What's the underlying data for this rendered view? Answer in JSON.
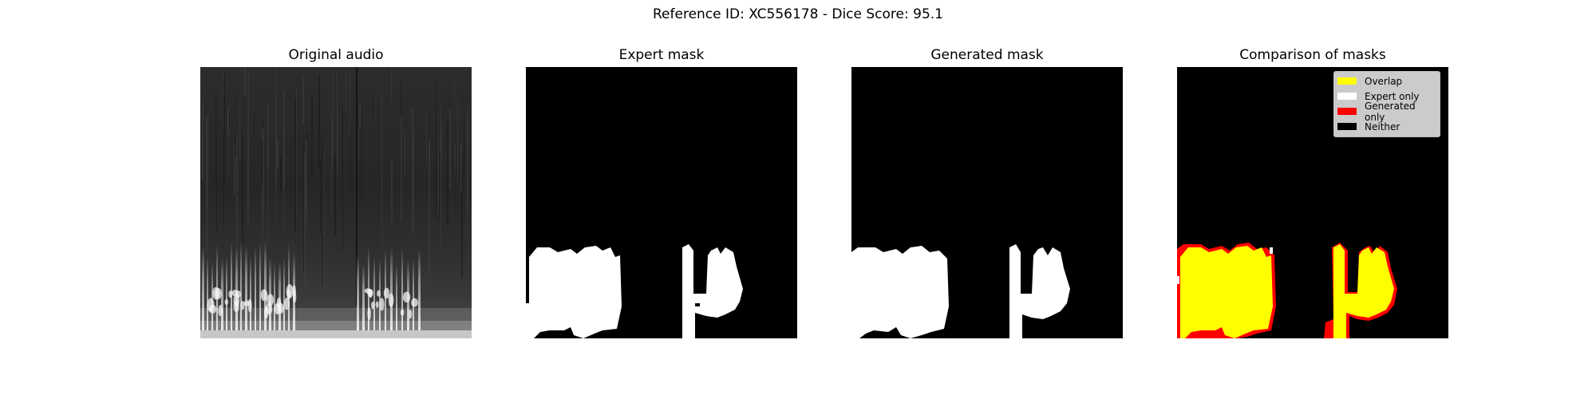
{
  "suptitle": "Reference ID: XC556178 - Dice Score: 95.1",
  "panels": [
    {
      "title": "Original audio",
      "kind": "spectrogram"
    },
    {
      "title": "Expert mask",
      "kind": "binary-mask"
    },
    {
      "title": "Generated mask",
      "kind": "binary-mask"
    },
    {
      "title": "Comparison of masks",
      "kind": "comparison"
    }
  ],
  "legend": [
    {
      "label": "Overlap",
      "color": "#ffff00"
    },
    {
      "label": "Expert only",
      "color": "#ffffff"
    },
    {
      "label": "Generated only",
      "color": "#ff0000"
    },
    {
      "label": "Neither",
      "color": "#000000"
    }
  ],
  "chart_data": {
    "type": "heatmap",
    "title": "Reference ID: XC556178 - Dice Score: 95.1",
    "dice_score": 95.1,
    "subplots": [
      "Original audio",
      "Expert mask",
      "Generated mask",
      "Comparison of masks"
    ],
    "legend_placement": "top-right",
    "axes_visible": false,
    "categories": [
      "Overlap",
      "Expert only",
      "Generated only",
      "Neither"
    ],
    "colors": {
      "Overlap": "#ffff00",
      "Expert only": "#ffffff",
      "Generated only": "#ff0000",
      "Neither": "#000000"
    }
  }
}
